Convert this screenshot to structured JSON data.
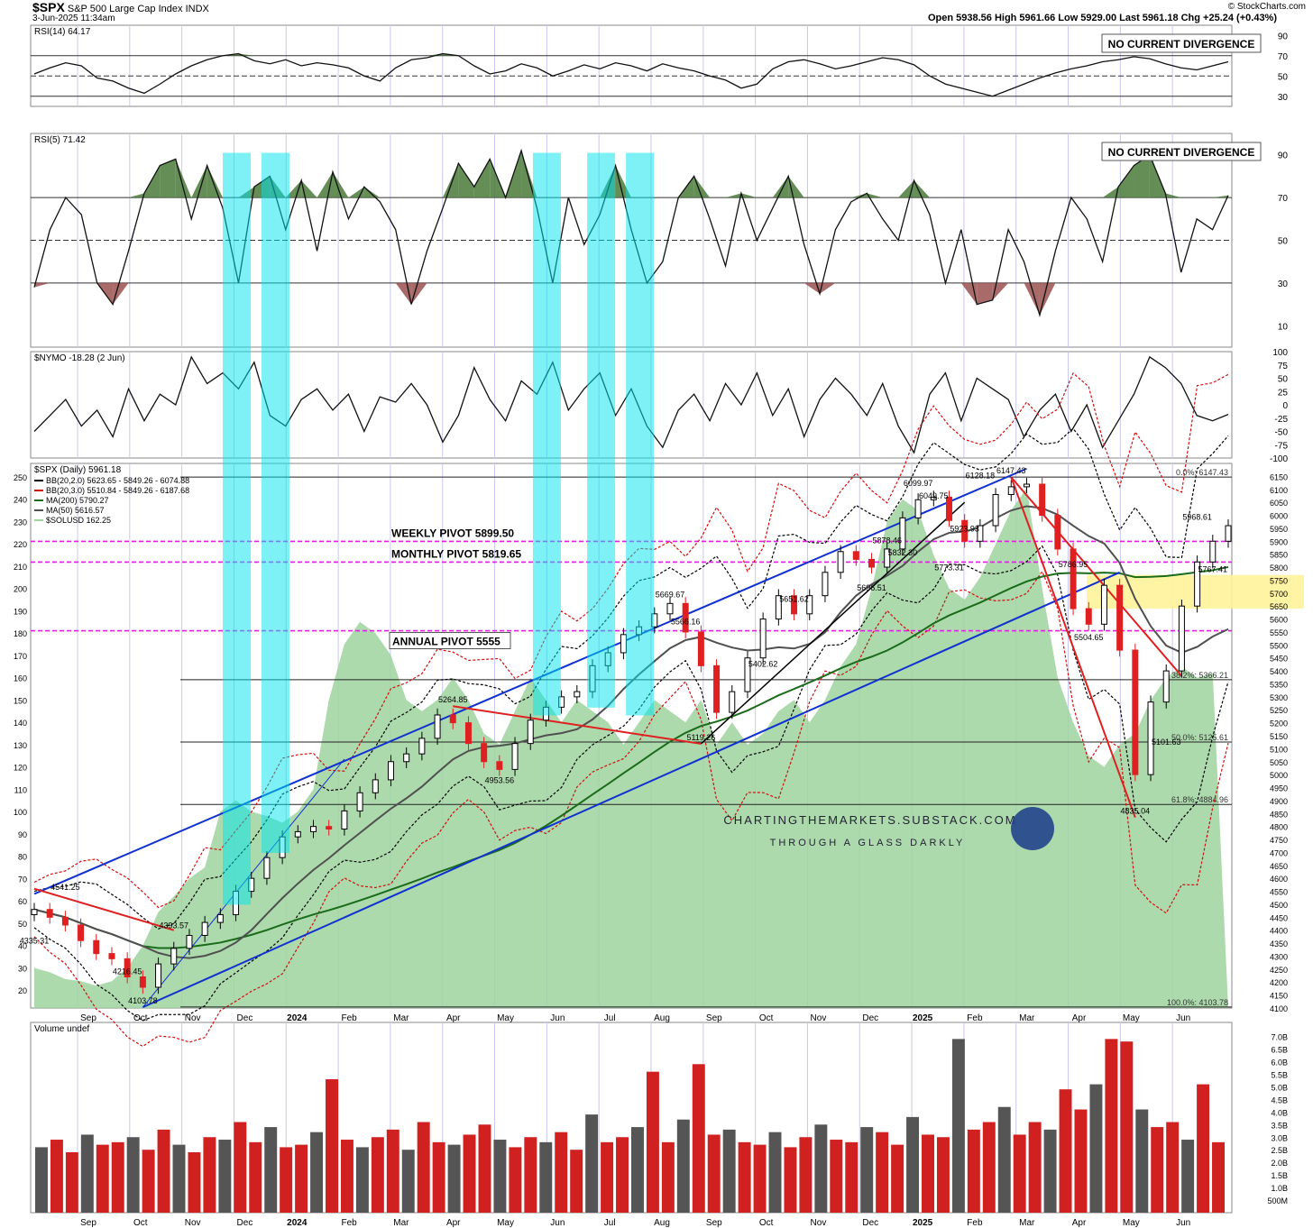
{
  "header": {
    "symbol": "$SPX",
    "name": "S&P 500 Large Cap Index",
    "exchange": "INDX",
    "date": "3-Jun-2025 11:34am",
    "source": "© StockCharts.com",
    "ohlc": "Open 5938.56   High 5961.66   Low 5929.00   Last 5961.18   Chg +25.24 (+0.43%)"
  },
  "colors": {
    "cyan_band": "#00e5ee",
    "pivot_magenta": "#e020e0",
    "up_candle": "#000000",
    "down_candle": "#e02020",
    "sol_area": "#9fd49f",
    "ma200": "#1a6b1a",
    "ma50": "#505050",
    "bb2": "#000000",
    "bb3": "#d01010",
    "trend_blue": "#1030d0",
    "trend_red": "#e02020",
    "yellow_zone": "#fff39a",
    "rsi_ob_fill": "#4a7a3a",
    "rsi_os_fill": "#9a5050"
  },
  "chart_data": [
    {
      "type": "line",
      "panel": "RSI14",
      "title": "RSI(14) 64.17",
      "note": "NO CURRENT DIVERGENCE",
      "ylim": [
        20,
        100
      ],
      "ticks": [
        90,
        70,
        50,
        30
      ],
      "levels": [
        70,
        50,
        30
      ],
      "series": [
        {
          "name": "RSI(14)",
          "values": [
            52,
            58,
            63,
            60,
            48,
            45,
            38,
            33,
            42,
            52,
            60,
            66,
            70,
            72,
            65,
            62,
            66,
            60,
            63,
            61,
            58,
            50,
            45,
            58,
            66,
            68,
            72,
            70,
            60,
            52,
            55,
            62,
            58,
            50,
            55,
            61,
            57,
            63,
            60,
            55,
            62,
            58,
            55,
            50,
            46,
            38,
            42,
            57,
            64,
            66,
            62,
            57,
            60,
            64,
            68,
            66,
            61,
            50,
            42,
            38,
            34,
            30,
            36,
            42,
            48,
            53,
            57,
            60,
            64,
            66,
            69,
            67,
            62,
            58,
            56,
            60,
            64
          ]
        }
      ]
    },
    {
      "type": "line",
      "panel": "RSI5",
      "title": "RSI(5) 71.42",
      "note": "NO CURRENT DIVERGENCE",
      "ylim": [
        0,
        100
      ],
      "ticks": [
        90,
        70,
        50,
        30,
        10
      ],
      "levels": [
        70,
        50,
        30
      ],
      "series": [
        {
          "name": "RSI(5)",
          "values": [
            28,
            55,
            70,
            62,
            30,
            20,
            45,
            72,
            85,
            88,
            60,
            85,
            65,
            30,
            75,
            80,
            55,
            78,
            45,
            82,
            60,
            75,
            68,
            55,
            20,
            45,
            65,
            86,
            75,
            88,
            70,
            92,
            65,
            30,
            70,
            48,
            62,
            85,
            55,
            30,
            40,
            70,
            80,
            60,
            38,
            72,
            50,
            65,
            80,
            48,
            25,
            55,
            68,
            72,
            60,
            50,
            78,
            62,
            30,
            55,
            20,
            22,
            55,
            40,
            15,
            45,
            70,
            60,
            40,
            75,
            85,
            90,
            72,
            35,
            60,
            55,
            71
          ]
        }
      ]
    },
    {
      "type": "line",
      "panel": "NYMO",
      "title": "$NYMO -18.28 (2 Jun)",
      "ylim": [
        -100,
        100
      ],
      "ticks": [
        100,
        75,
        50,
        25,
        0,
        -25,
        -50,
        -75,
        -100
      ],
      "series": [
        {
          "name": "$NYMO",
          "values": [
            -50,
            -20,
            10,
            -40,
            -10,
            -60,
            30,
            -30,
            20,
            0,
            90,
            40,
            60,
            30,
            80,
            -20,
            -40,
            10,
            30,
            -10,
            20,
            -50,
            15,
            5,
            40,
            0,
            -70,
            -20,
            70,
            10,
            -30,
            45,
            20,
            80,
            -10,
            30,
            60,
            -20,
            30,
            -40,
            -80,
            -10,
            20,
            -30,
            40,
            0,
            60,
            -20,
            30,
            -60,
            10,
            50,
            20,
            -20,
            40,
            -40,
            -90,
            20,
            60,
            -30,
            50,
            30,
            10,
            -60,
            -10,
            20,
            -50,
            0,
            -80,
            -30,
            20,
            90,
            70,
            40,
            -20,
            -30,
            -18
          ]
        }
      ]
    },
    {
      "type": "candlestick",
      "panel": "SPX",
      "title": "$SPX (Daily) 5961.18",
      "legend": [
        "BB(20,2.0) 5623.65 - 5849.26 - 6074.88",
        "BB(20,3.0) 5510.84 - 5849.26 - 6187.68",
        "MA(200) 5790.27",
        "MA(50) 5616.57",
        "$SOLUSD 162.25"
      ],
      "ylim": [
        4100,
        6200
      ],
      "right_ticks": [
        6150,
        6100,
        6050,
        6000,
        5950,
        5900,
        5850,
        5800,
        5750,
        5700,
        5650,
        5600,
        5550,
        5500,
        5450,
        5400,
        5350,
        5300,
        5250,
        5200,
        5150,
        5100,
        5050,
        5000,
        4950,
        4900,
        4850,
        4800,
        4750,
        4700,
        4650,
        4600,
        4550,
        4500,
        4450,
        4400,
        4350,
        4300,
        4250,
        4200,
        4150,
        4100
      ],
      "left_ticks": [
        250,
        240,
        230,
        220,
        210,
        200,
        190,
        180,
        170,
        160,
        150,
        140,
        130,
        120,
        110,
        100,
        90,
        80,
        70,
        60,
        50,
        40,
        30,
        20
      ],
      "x_labels": [
        "Sep",
        "Oct",
        "Nov",
        "Dec",
        "2024",
        "Feb",
        "Mar",
        "Apr",
        "May",
        "Jun",
        "Jul",
        "Aug",
        "Sep",
        "Oct",
        "Nov",
        "Dec",
        "2025",
        "Feb",
        "Mar",
        "Apr",
        "May",
        "Jun"
      ],
      "close": [
        4480,
        4450,
        4420,
        4360,
        4310,
        4290,
        4220,
        4180,
        4270,
        4330,
        4380,
        4430,
        4460,
        4550,
        4600,
        4680,
        4760,
        4780,
        4800,
        4790,
        4860,
        4930,
        4980,
        5050,
        5080,
        5140,
        5230,
        5200,
        5120,
        5050,
        5020,
        5120,
        5210,
        5260,
        5300,
        5320,
        5420,
        5470,
        5540,
        5570,
        5620,
        5660,
        5550,
        5420,
        5240,
        5320,
        5450,
        5600,
        5690,
        5620,
        5690,
        5780,
        5860,
        5830,
        5800,
        5870,
        5990,
        6060,
        6070,
        5980,
        5900,
        5960,
        6080,
        6110,
        6120,
        6000,
        5870,
        5640,
        5580,
        5730,
        5480,
        5000,
        5280,
        5400,
        5650,
        5820,
        5900,
        5960
      ],
      "annotations": [
        {
          "price": 6147.43,
          "text": "6147.43"
        },
        {
          "price": 6128.18,
          "text": "6128.18"
        },
        {
          "price": 6099.97,
          "text": "6099.97"
        },
        {
          "price": 6049.75,
          "text": "6049.75"
        },
        {
          "price": 5968.61,
          "text": "5968.61"
        },
        {
          "price": 5923.93,
          "text": "5923.93"
        },
        {
          "price": 5878.46,
          "text": "5878.46"
        },
        {
          "price": 5832.3,
          "text": "5832.30"
        },
        {
          "price": 5786.95,
          "text": "5786.95"
        },
        {
          "price": 5773.31,
          "text": "5773.31"
        },
        {
          "price": 5767.41,
          "text": "5767.41"
        },
        {
          "price": 5696.51,
          "text": "5696.51"
        },
        {
          "price": 5669.67,
          "text": "5669.67"
        },
        {
          "price": 5651.62,
          "text": "5651.62"
        },
        {
          "price": 5566.16,
          "text": "5566.16"
        },
        {
          "price": 5504.65,
          "text": "5504.65"
        },
        {
          "price": 5402.62,
          "text": "5402.62"
        },
        {
          "price": 5264.85,
          "text": "5264.85"
        },
        {
          "price": 5119.26,
          "text": "5119.26"
        },
        {
          "price": 5101.63,
          "text": "5101.63"
        },
        {
          "price": 4953.56,
          "text": "4953.56"
        },
        {
          "price": 4835.04,
          "text": "4835.04"
        },
        {
          "price": 4541.25,
          "text": "4541.25"
        },
        {
          "price": 4393.57,
          "text": "4393.57"
        },
        {
          "price": 4335.31,
          "text": "4335.31"
        },
        {
          "price": 4216.45,
          "text": "4216.45"
        },
        {
          "price": 4103.78,
          "text": "4103.78"
        }
      ],
      "pivots": [
        {
          "label": "WEEKLY PIVOT 5899.50",
          "price": 5899.5
        },
        {
          "label": "MONTHLY PIVOT 5819.65",
          "price": 5819.65
        },
        {
          "label": "ANNUAL PIVOT 5555",
          "price": 5555
        }
      ],
      "fib_levels": [
        {
          "label": "0.0%: 6147.43",
          "price": 6147.43
        },
        {
          "label": "38.2%: 5366.21",
          "price": 5366.21
        },
        {
          "label": "50.0%: 5125.61",
          "price": 5125.61
        },
        {
          "label": "61.8%: 4884.96",
          "price": 4884.96
        },
        {
          "label": "100.0%: 4103.78",
          "price": 4103.78
        }
      ],
      "watermark": {
        "line1": "CHARTINGTHEMARKETS.SUBSTACK.COM",
        "line2": "THROUGH A GLASS DARKLY"
      }
    },
    {
      "type": "bar",
      "panel": "Volume",
      "title": "Volume undef",
      "ticks": [
        "7.0B",
        "6.5B",
        "6.0B",
        "5.5B",
        "5.0B",
        "4.5B",
        "4.0B",
        "3.5B",
        "3.0B",
        "2.5B",
        "2.0B",
        "1.5B",
        "1.0B",
        "500M"
      ],
      "ylim": [
        0,
        7.2
      ],
      "values": [
        2.6,
        2.9,
        2.4,
        3.1,
        2.7,
        2.8,
        3.0,
        2.5,
        3.3,
        2.7,
        2.4,
        3.0,
        2.9,
        3.6,
        2.8,
        3.4,
        2.6,
        2.7,
        3.2,
        5.3,
        2.9,
        2.6,
        3.0,
        3.3,
        2.5,
        3.6,
        2.8,
        2.7,
        3.1,
        3.5,
        2.9,
        2.6,
        3.0,
        2.8,
        3.2,
        2.5,
        3.9,
        2.8,
        3.0,
        3.4,
        5.6,
        2.8,
        3.7,
        5.9,
        3.1,
        3.3,
        2.8,
        2.7,
        3.2,
        2.6,
        3.0,
        3.5,
        2.9,
        2.8,
        3.4,
        3.2,
        2.7,
        3.8,
        3.1,
        3.0,
        6.9,
        3.3,
        3.6,
        4.2,
        3.1,
        3.6,
        3.3,
        4.9,
        4.1,
        5.1,
        6.9,
        6.8,
        4.1,
        3.4,
        3.6,
        2.9,
        5.1,
        2.8
      ]
    }
  ]
}
